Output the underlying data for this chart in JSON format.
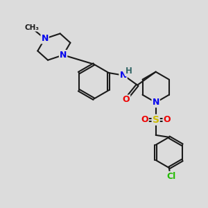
{
  "background_color": "#dcdcdc",
  "bond_color": "#1a1a1a",
  "bond_width": 1.5,
  "atom_colors": {
    "N": "#0000ee",
    "O": "#ee0000",
    "S": "#ccbb00",
    "Cl": "#22bb00",
    "NH": "#336666",
    "C": "#1a1a1a"
  },
  "figsize": [
    3.0,
    3.0
  ],
  "dpi": 100
}
